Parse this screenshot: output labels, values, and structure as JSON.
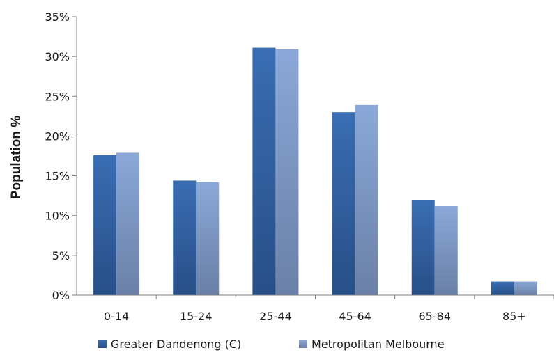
{
  "chart_data": {
    "type": "bar",
    "title": "",
    "xlabel": "",
    "ylabel": "Population %",
    "ylim": [
      0,
      35
    ],
    "yticks": [
      "0%",
      "5%",
      "10%",
      "15%",
      "20%",
      "25%",
      "30%",
      "35%"
    ],
    "grid": false,
    "legend": "bottom",
    "categories": [
      "0-14",
      "15-24",
      "25-44",
      "45-64",
      "65-84",
      "85+"
    ],
    "series": [
      {
        "name": "Greater Dandenong (C)",
        "values": [
          17.6,
          14.4,
          31.1,
          23.0,
          11.9,
          1.7
        ],
        "color": "#3a68ad"
      },
      {
        "name": "Metropolitan Melbourne",
        "values": [
          17.9,
          14.2,
          30.9,
          23.9,
          11.2,
          1.7
        ],
        "color": "#7d9bcf"
      }
    ]
  }
}
